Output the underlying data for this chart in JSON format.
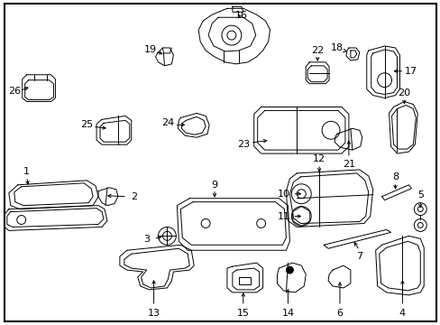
{
  "background_color": "#ffffff",
  "border_color": "#000000",
  "line_color": "#000000",
  "fig_width": 4.89,
  "fig_height": 3.6,
  "dpi": 100
}
